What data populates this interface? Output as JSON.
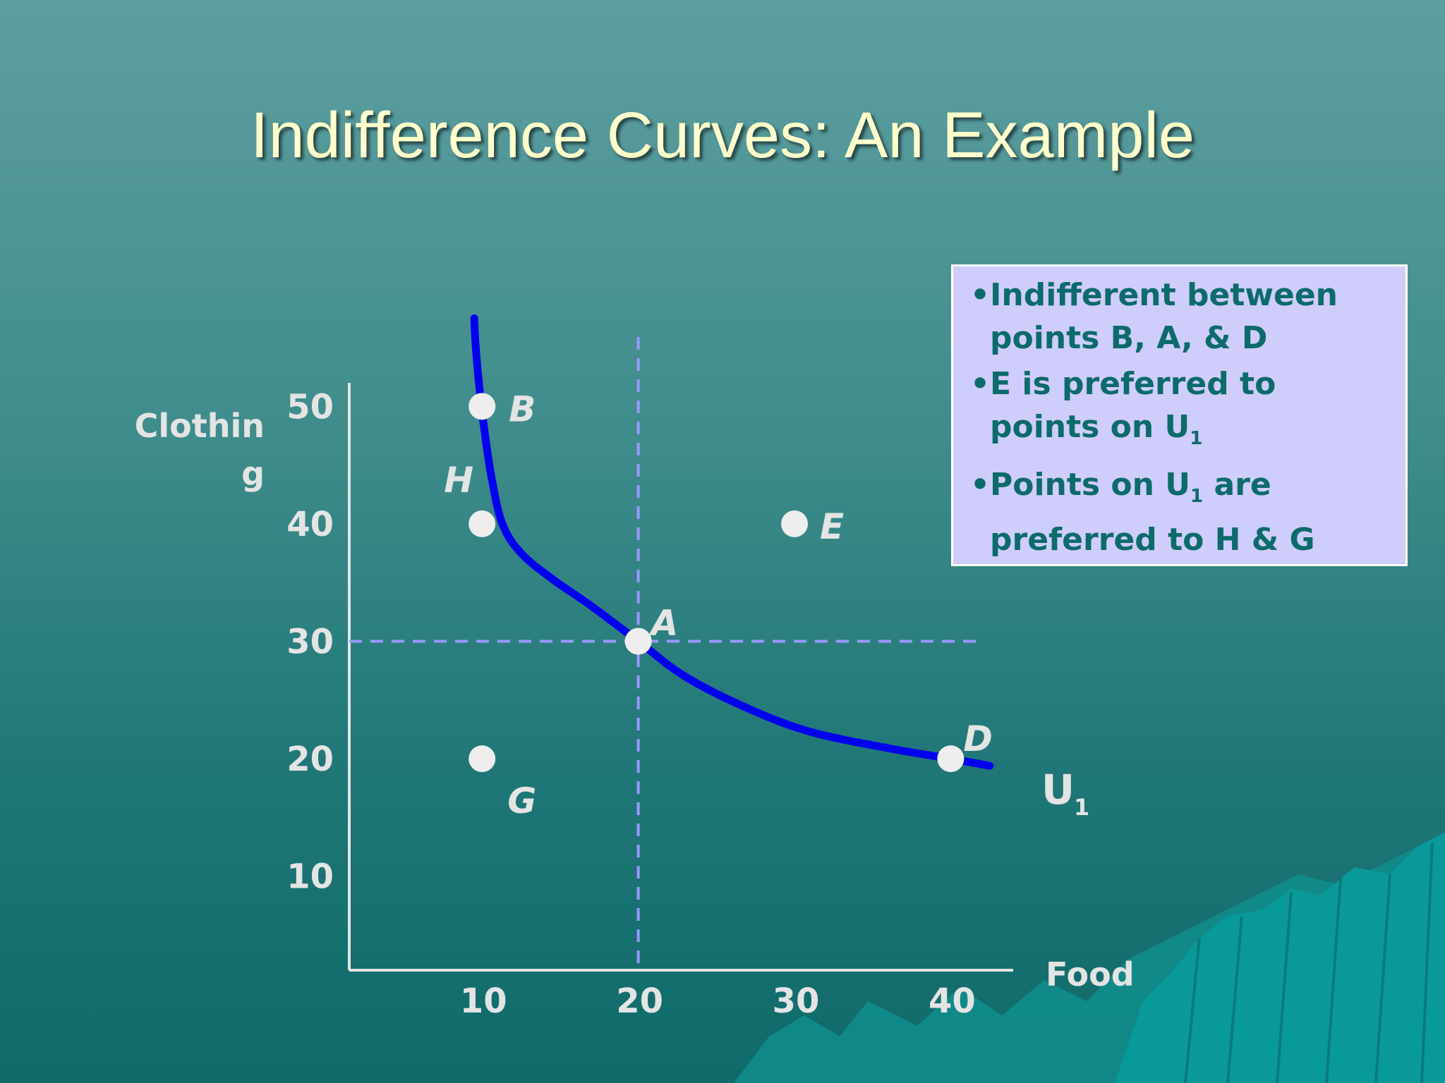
{
  "title": "Indifference Curves: An Example",
  "colors": {
    "curve": "#0000ee",
    "guides": "#9999ff",
    "points": "#eeeeee",
    "axis_text": "#e4e4e4",
    "title": "#ffffcc",
    "note_bg": "#cfcdfb",
    "note_text": "#0c6b6b"
  },
  "note": {
    "bullet1": "Indifferent between points B, A, & D",
    "bullet2_prefix": "E  is preferred to points on U",
    "bullet2_sub": "1",
    "bullet3_a": "Points on U",
    "bullet3_sub": "1",
    "bullet3_b": " are preferred to H & G"
  },
  "chart_data": {
    "type": "scatter",
    "title": "Indifference Curves: An Example",
    "xlabel": "Food",
    "ylabel": "Clothing",
    "x_ticks": [
      "10",
      "20",
      "30",
      "40"
    ],
    "y_ticks": [
      "10",
      "20",
      "30",
      "40",
      "50"
    ],
    "xlim": [
      1.5,
      44
    ],
    "ylim": [
      2,
      52
    ],
    "grid": false,
    "points": [
      {
        "label": "B",
        "x": 10,
        "y": 50
      },
      {
        "label": "A",
        "x": 20,
        "y": 30
      },
      {
        "label": "D",
        "x": 40,
        "y": 20
      },
      {
        "label": "E",
        "x": 30,
        "y": 40
      },
      {
        "label": "H",
        "x": 10,
        "y": 40
      },
      {
        "label": "G",
        "x": 10,
        "y": 20
      }
    ],
    "curve": {
      "name": "U",
      "name_sub": "1",
      "points": [
        [
          9.5,
          57.5
        ],
        [
          9.6,
          55
        ],
        [
          9.8,
          52
        ],
        [
          10.1,
          48.5
        ],
        [
          10.6,
          44
        ],
        [
          11.3,
          40
        ],
        [
          12.5,
          37.5
        ],
        [
          14.5,
          35.3
        ],
        [
          17,
          33
        ],
        [
          20,
          30
        ],
        [
          23,
          27
        ],
        [
          27,
          24.3
        ],
        [
          31,
          22.3
        ],
        [
          36,
          20.9
        ],
        [
          40,
          20
        ],
        [
          42.5,
          19.4
        ]
      ]
    },
    "guides": {
      "x": 20,
      "y": 30
    }
  }
}
